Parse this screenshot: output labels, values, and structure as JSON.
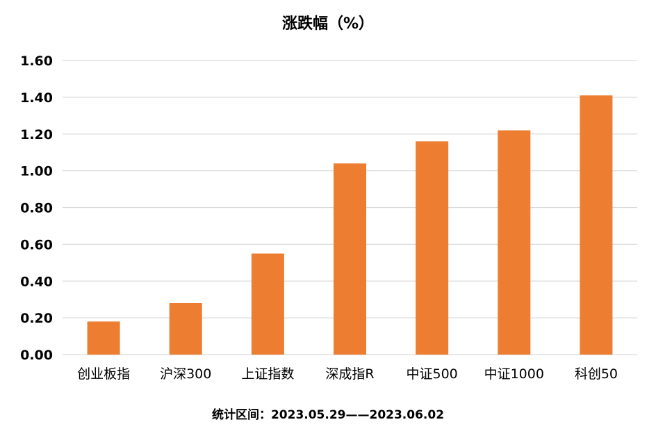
{
  "chart_data": {
    "type": "bar",
    "title": "涨跌幅（%）",
    "footer": "统计区间：2023.05.29——2023.06.02",
    "categories": [
      "创业板指",
      "沪深300",
      "上证指数",
      "深成指R",
      "中证500",
      "中证1000",
      "科创50"
    ],
    "series": [
      {
        "values": [
          0.18,
          0.28,
          0.55,
          1.04,
          1.16,
          1.22,
          1.41
        ]
      }
    ],
    "ylim": [
      0,
      1.6
    ],
    "yticks": [
      "0.00",
      "0.20",
      "0.40",
      "0.60",
      "0.80",
      "1.00",
      "1.20",
      "1.40",
      "1.60"
    ],
    "xlabel": "",
    "ylabel": "",
    "grid": true,
    "legend": "none",
    "bar_color": "#ED7D31",
    "grid_color": "#D9D9D9"
  }
}
